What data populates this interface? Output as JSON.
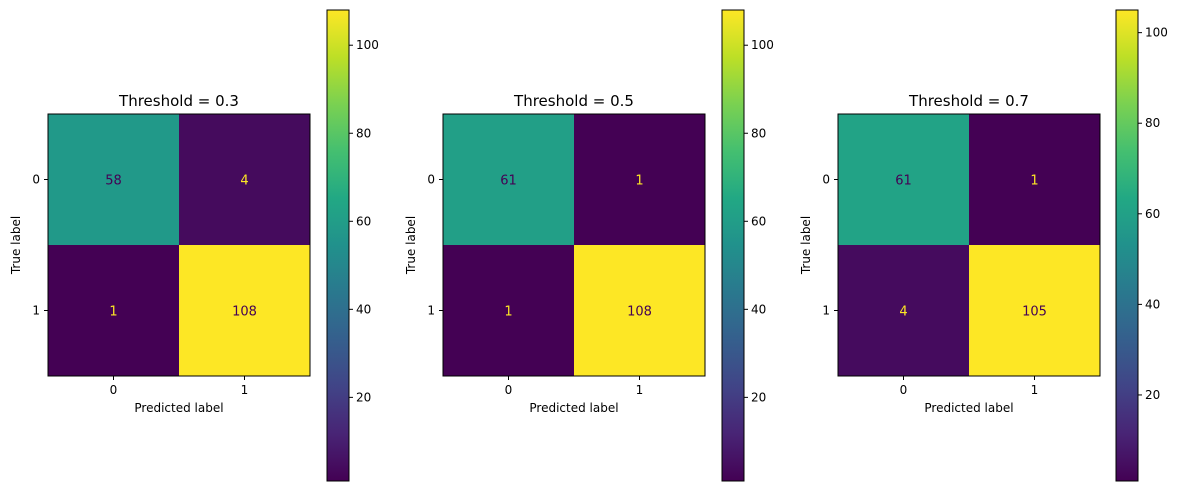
{
  "chart_data": [
    {
      "type": "heatmap",
      "title": "Threshold = 0.3",
      "xlabel": "Predicted label",
      "ylabel": "True label",
      "x_categories": [
        "0",
        "1"
      ],
      "y_categories": [
        "0",
        "1"
      ],
      "matrix": [
        [
          58,
          4
        ],
        [
          1,
          108
        ]
      ],
      "colormap": "viridis",
      "colorbar": {
        "range": [
          1,
          108
        ],
        "ticks": [
          20,
          40,
          60,
          80,
          100
        ]
      }
    },
    {
      "type": "heatmap",
      "title": "Threshold = 0.5",
      "xlabel": "Predicted label",
      "ylabel": "True label",
      "x_categories": [
        "0",
        "1"
      ],
      "y_categories": [
        "0",
        "1"
      ],
      "matrix": [
        [
          61,
          1
        ],
        [
          1,
          108
        ]
      ],
      "colormap": "viridis",
      "colorbar": {
        "range": [
          1,
          108
        ],
        "ticks": [
          20,
          40,
          60,
          80,
          100
        ]
      }
    },
    {
      "type": "heatmap",
      "title": "Threshold = 0.7",
      "xlabel": "Predicted label",
      "ylabel": "True label",
      "x_categories": [
        "0",
        "1"
      ],
      "y_categories": [
        "0",
        "1"
      ],
      "matrix": [
        [
          61,
          1
        ],
        [
          4,
          105
        ]
      ],
      "colormap": "viridis",
      "colorbar": {
        "range": [
          1,
          105
        ],
        "ticks": [
          20,
          40,
          60,
          80,
          100
        ]
      }
    }
  ]
}
